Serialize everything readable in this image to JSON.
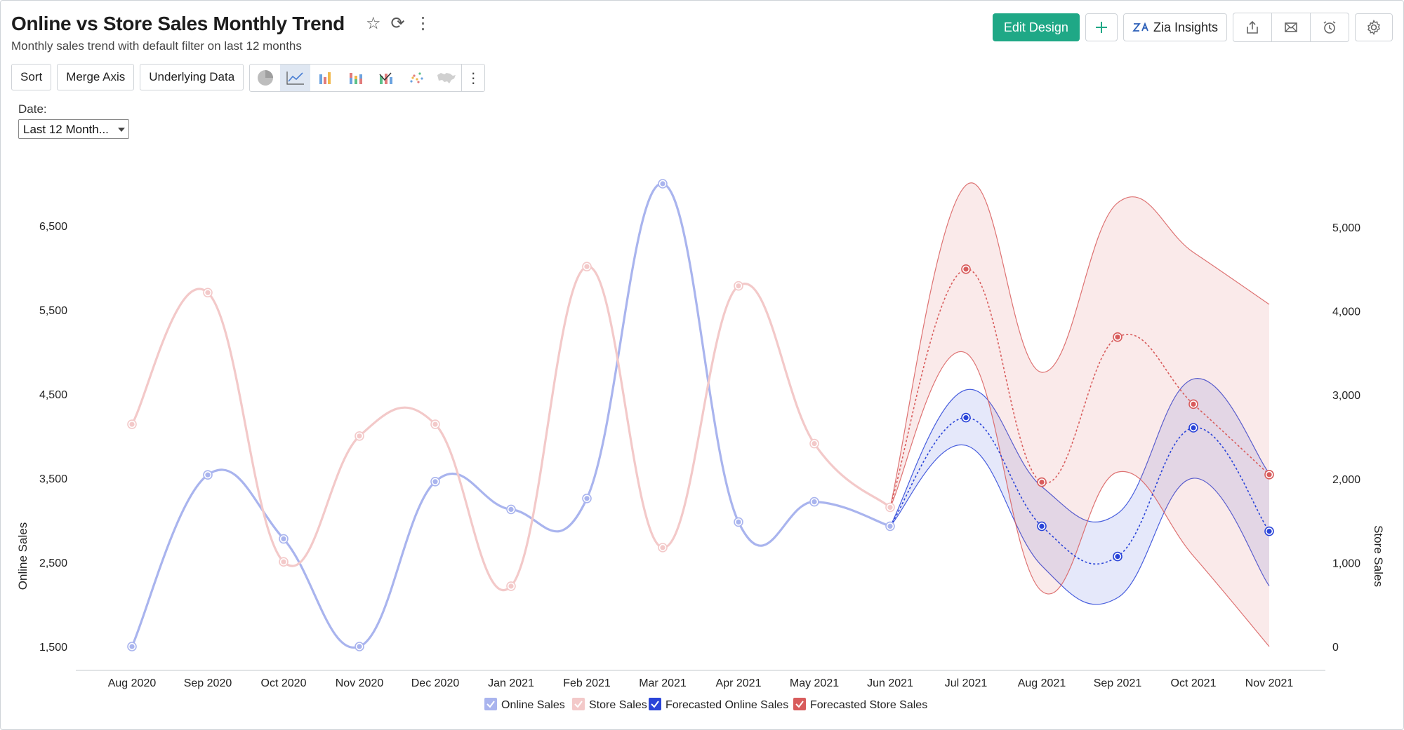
{
  "header": {
    "title": "Online vs Store Sales Monthly Trend",
    "subtitle": "Monthly sales trend with default filter on last 12 months"
  },
  "actions": {
    "edit_design": "Edit Design",
    "zia_insights": "Zia Insights",
    "brand_color": "#1fa886"
  },
  "toolbar": {
    "sort": "Sort",
    "merge_axis": "Merge Axis",
    "underlying_data": "Underlying Data",
    "chart_types": [
      "pie-chart-icon",
      "line-chart-icon",
      "bar-chart-icon",
      "stacked-bar-icon",
      "combo-chart-icon",
      "scatter-chart-icon",
      "map-chart-icon"
    ],
    "active_chart_type": "line-chart-icon"
  },
  "filter": {
    "label": "Date:",
    "value": "Last 12 Month..."
  },
  "chart_data": {
    "type": "line",
    "categories": [
      "Aug 2020",
      "Sep 2020",
      "Oct 2020",
      "Nov 2020",
      "Dec 2020",
      "Jan 2021",
      "Feb 2021",
      "Mar 2021",
      "Apr 2021",
      "May 2021",
      "Jun 2021",
      "Jul 2021",
      "Aug 2021",
      "Sep 2021",
      "Oct 2021",
      "Nov 2021"
    ],
    "y_left": {
      "label": "Online Sales",
      "ticks": [
        "1,500",
        "2,500",
        "3,500",
        "4,500",
        "5,500",
        "6,500"
      ],
      "range": [
        1500,
        6500
      ]
    },
    "y_right": {
      "label": "Store Sales",
      "ticks": [
        "0",
        "1,000",
        "2,000",
        "3,000",
        "4,000",
        "5,000"
      ],
      "range": [
        0,
        5000
      ]
    },
    "series": [
      {
        "name": "Online Sales",
        "axis": "left",
        "color": "#a9b4ee",
        "values": [
          1500,
          3540,
          2780,
          1500,
          3460,
          3130,
          3260,
          7000,
          2980,
          3220,
          2930,
          null,
          null,
          null,
          null,
          null
        ]
      },
      {
        "name": "Store Sales",
        "axis": "right",
        "color": "#f3c9c9",
        "values": [
          2650,
          4220,
          1010,
          2510,
          2650,
          720,
          4530,
          1180,
          4300,
          2420,
          1660,
          null,
          null,
          null,
          null,
          null
        ]
      },
      {
        "name": "Forecasted Online Sales",
        "axis": "left",
        "color": "#2a44d8",
        "values": [
          null,
          null,
          null,
          null,
          null,
          null,
          null,
          null,
          null,
          null,
          2930,
          4220,
          2930,
          2570,
          4100,
          2870
        ],
        "band_upper": [
          null,
          null,
          null,
          null,
          null,
          null,
          null,
          null,
          null,
          null,
          2930,
          4550,
          3400,
          3080,
          4680,
          3560
        ],
        "band_lower": [
          null,
          null,
          null,
          null,
          null,
          null,
          null,
          null,
          null,
          null,
          2930,
          3890,
          2460,
          2080,
          3500,
          2220
        ]
      },
      {
        "name": "Forecasted Store Sales",
        "axis": "right",
        "color": "#d85c5c",
        "values": [
          null,
          null,
          null,
          null,
          null,
          null,
          null,
          null,
          null,
          null,
          1660,
          4500,
          1960,
          3690,
          2890,
          2050
        ],
        "band_upper": [
          null,
          null,
          null,
          null,
          null,
          null,
          null,
          null,
          null,
          null,
          1660,
          5500,
          3270,
          5290,
          4700,
          4080
        ],
        "band_lower": [
          null,
          null,
          null,
          null,
          null,
          null,
          null,
          null,
          null,
          null,
          1660,
          3500,
          660,
          2080,
          1080,
          0
        ]
      }
    ],
    "legend_position": "bottom",
    "grid": false
  }
}
